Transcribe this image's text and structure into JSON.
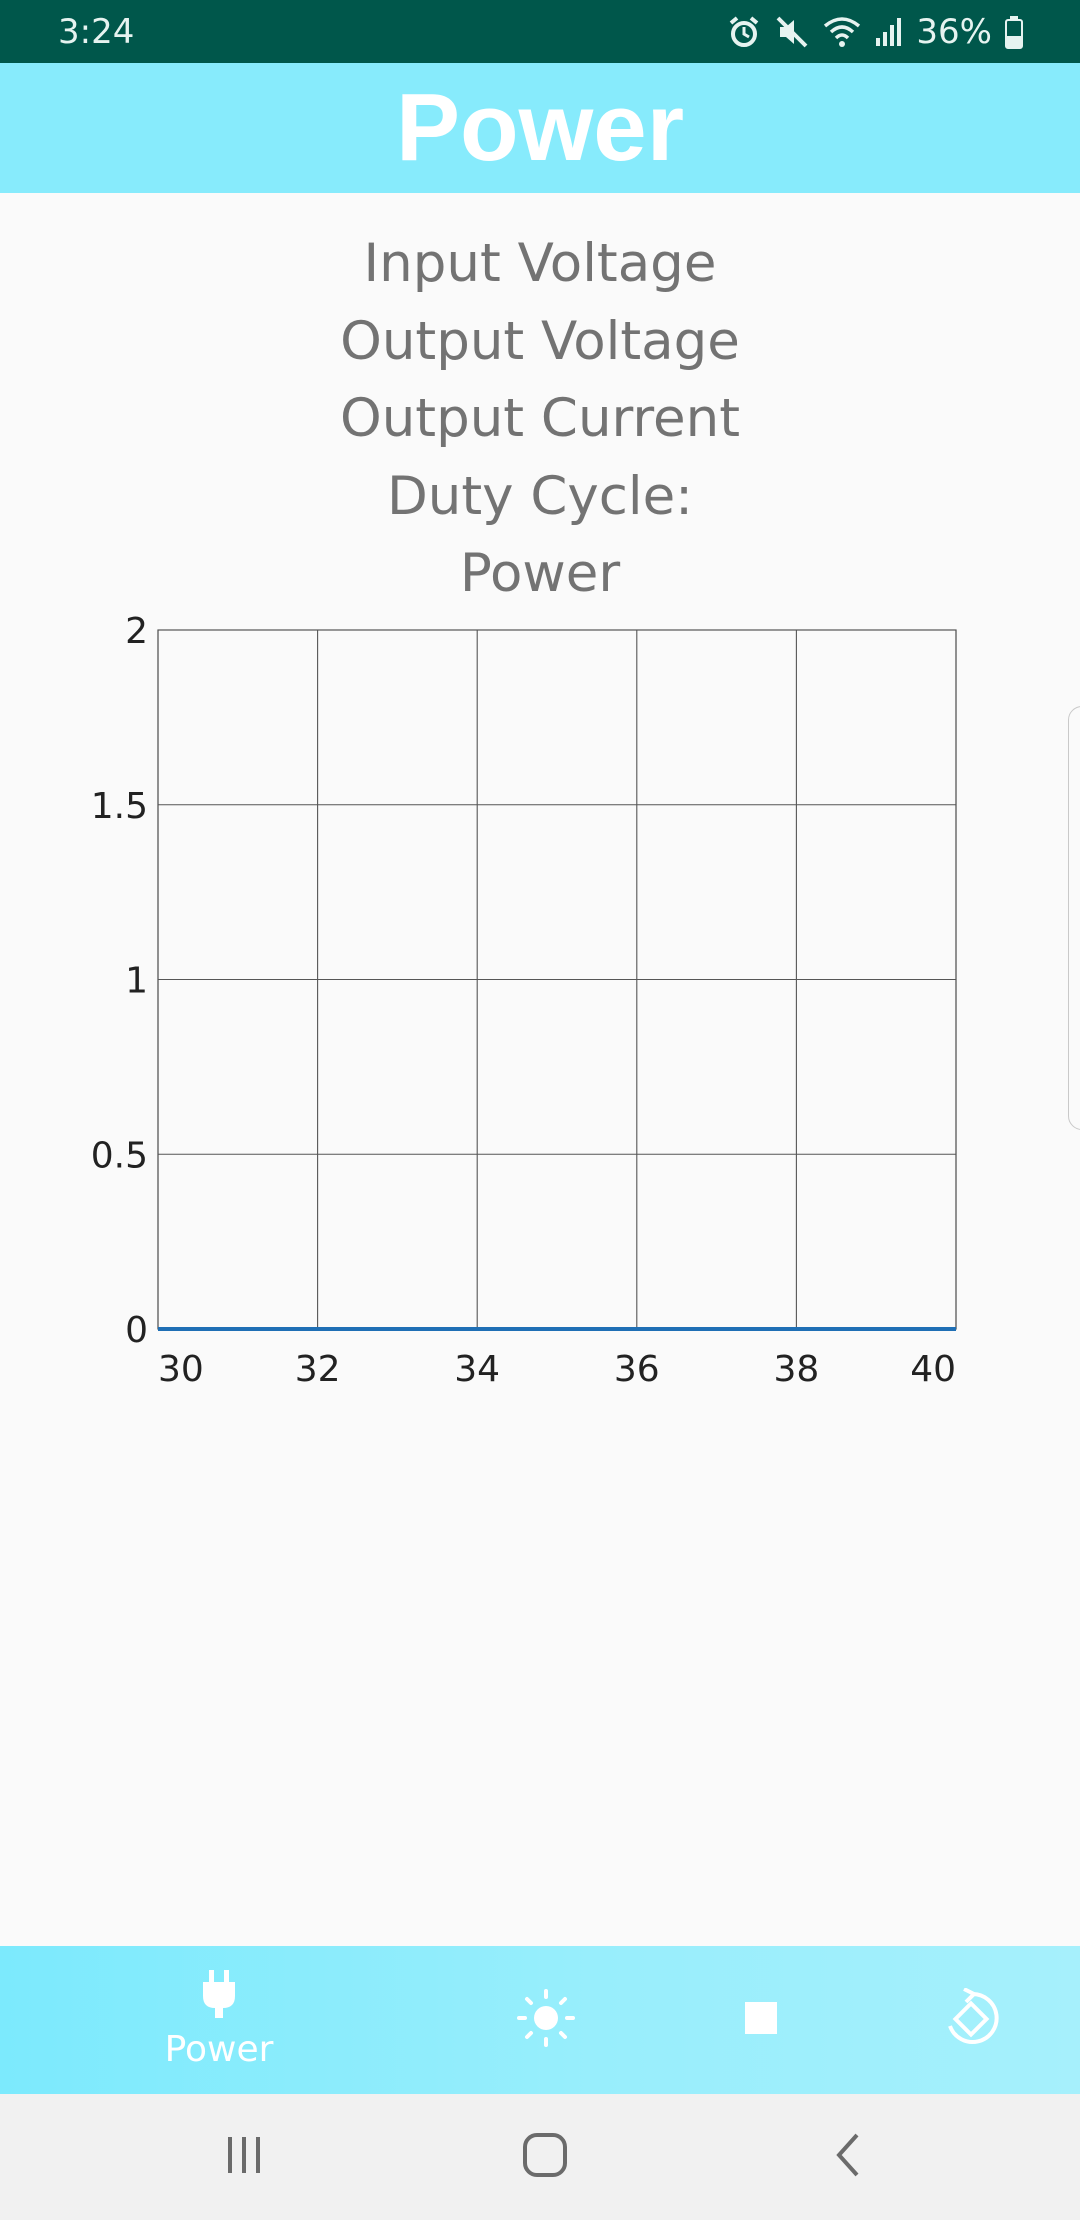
{
  "status_bar": {
    "time": "3:24",
    "battery_text": "36%",
    "icons": [
      "alarm-icon",
      "mute-icon",
      "wifi-icon",
      "signal-icon",
      "battery-icon"
    ]
  },
  "app_bar": {
    "title": "Power"
  },
  "readouts": [
    "Input Voltage",
    "Output Voltage",
    "Output Current",
    "Duty Cycle:",
    "Power"
  ],
  "chart_data": {
    "type": "line",
    "x": [
      30,
      32,
      40
    ],
    "series": [
      {
        "values": [
          0,
          0,
          0
        ],
        "color": "#1f6fb5"
      }
    ],
    "xlim": [
      30,
      40
    ],
    "ylim": [
      0,
      2
    ],
    "xticks": [
      "30",
      "32",
      "34",
      "36",
      "38",
      "40"
    ],
    "yticks": [
      "0",
      "0.5",
      "1",
      "1.5",
      "2"
    ],
    "grid": true
  },
  "bottom_nav": {
    "items": [
      {
        "label": "Power",
        "icon": "plug-icon",
        "selected": true
      },
      {
        "label": "",
        "icon": "sun-icon",
        "selected": false
      },
      {
        "label": "",
        "icon": "stop-icon",
        "selected": false
      },
      {
        "label": "",
        "icon": "rotate-icon",
        "selected": false
      }
    ]
  },
  "system_nav": {
    "icons": [
      "recent-apps-icon",
      "home-icon",
      "back-icon"
    ]
  },
  "colors": {
    "status_bar": "#00574b",
    "app_bar": "#87ebfc",
    "series_line": "#1f6fb5",
    "grid": "#555555"
  }
}
